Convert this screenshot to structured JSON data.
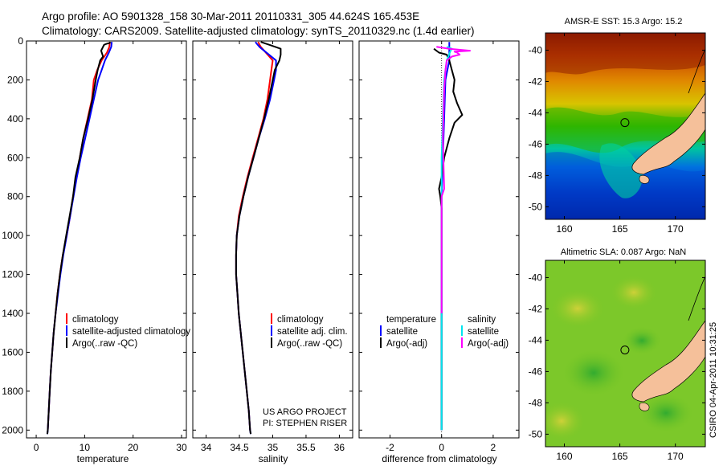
{
  "header": {
    "line1": "Argo profile: AO 5901328_158 30-Mar-2011 20110331_305 44.624S 165.453E",
    "line2": "Climatology: CARS2009. Satellite-adjusted climatology: synTS_20110329.nc (1.4d earlier)"
  },
  "chart_data": [
    {
      "type": "line",
      "xlabel": "temperature",
      "ylabel": "",
      "xlim": [
        -2,
        31
      ],
      "ylim": [
        2040,
        0
      ],
      "y_reversed": true,
      "xticks": [
        0,
        10,
        20,
        30
      ],
      "yticks": [
        0,
        200,
        400,
        600,
        800,
        1000,
        1200,
        1400,
        1600,
        1800,
        2000
      ],
      "legend_position": "lower-right",
      "colors": {
        "climatology": "#ff0000",
        "satellite": "#0000ff",
        "argo": "#000000"
      },
      "series": [
        {
          "name": "climatology",
          "color": "#ff0000",
          "points": [
            [
              15.2,
              5
            ],
            [
              15.1,
              30
            ],
            [
              14.6,
              60
            ],
            [
              13.5,
              100
            ],
            [
              12.6,
              150
            ],
            [
              11.9,
              200
            ],
            [
              11.5,
              300
            ],
            [
              10.6,
              400
            ],
            [
              9.7,
              500
            ],
            [
              9.0,
              600
            ],
            [
              8.3,
              700
            ],
            [
              7.6,
              800
            ],
            [
              7.0,
              900
            ],
            [
              6.3,
              1000
            ],
            [
              5.5,
              1100
            ],
            [
              4.9,
              1200
            ],
            [
              4.4,
              1300
            ],
            [
              4.0,
              1400
            ],
            [
              3.6,
              1500
            ],
            [
              3.3,
              1600
            ],
            [
              3.0,
              1700
            ],
            [
              2.8,
              1800
            ],
            [
              2.6,
              1900
            ],
            [
              2.4,
              2000
            ]
          ]
        },
        {
          "name": "satellite-adjusted climatology",
          "color": "#0000ff",
          "points": [
            [
              15.6,
              5
            ],
            [
              15.5,
              30
            ],
            [
              15.0,
              60
            ],
            [
              14.2,
              100
            ],
            [
              13.5,
              150
            ],
            [
              12.8,
              200
            ],
            [
              11.9,
              300
            ],
            [
              11.0,
              400
            ],
            [
              10.1,
              500
            ],
            [
              9.2,
              600
            ],
            [
              8.4,
              700
            ],
            [
              7.7,
              800
            ],
            [
              7.0,
              900
            ],
            [
              6.3,
              1000
            ],
            [
              5.6,
              1100
            ],
            [
              5.0,
              1200
            ],
            [
              4.5,
              1300
            ],
            [
              4.0,
              1400
            ],
            [
              3.6,
              1500
            ],
            [
              3.3,
              1600
            ],
            [
              3.0,
              1700
            ],
            [
              2.8,
              1800
            ],
            [
              2.6,
              1900
            ],
            [
              2.4,
              2000
            ],
            [
              2.3,
              2020
            ]
          ]
        },
        {
          "name": "Argo(..raw -QC)",
          "color": "#000000",
          "points": [
            [
              15.3,
              5
            ],
            [
              15.2,
              10
            ],
            [
              14.5,
              15
            ],
            [
              14.0,
              20
            ],
            [
              13.4,
              50
            ],
            [
              13.8,
              80
            ],
            [
              13.2,
              100
            ],
            [
              12.7,
              150
            ],
            [
              12.3,
              200
            ],
            [
              11.6,
              300
            ],
            [
              10.7,
              400
            ],
            [
              9.7,
              500
            ],
            [
              9.0,
              600
            ],
            [
              8.1,
              700
            ],
            [
              7.6,
              800
            ],
            [
              6.9,
              900
            ],
            [
              6.2,
              1000
            ],
            [
              5.5,
              1100
            ],
            [
              4.9,
              1200
            ],
            [
              4.4,
              1300
            ],
            [
              4.0,
              1400
            ],
            [
              3.6,
              1500
            ],
            [
              3.3,
              1600
            ],
            [
              3.0,
              1700
            ],
            [
              2.8,
              1800
            ],
            [
              2.6,
              1900
            ],
            [
              2.4,
              2000
            ],
            [
              2.3,
              2020
            ]
          ]
        }
      ],
      "legend": [
        "climatology",
        "satellite-adjusted climatology",
        "Argo(..raw -QC)"
      ]
    },
    {
      "type": "line",
      "xlabel": "salinity",
      "xlim": [
        33.8,
        36.2
      ],
      "ylim": [
        2040,
        0
      ],
      "y_reversed": true,
      "xticks": [
        34,
        34.5,
        35,
        35.5,
        36
      ],
      "xticklabels": [
        "34",
        "34.5",
        "35",
        "35.5",
        "36"
      ],
      "legend_position": "lower-right",
      "series": [
        {
          "name": "climatology",
          "color": "#ff0000",
          "points": [
            [
              34.78,
              5
            ],
            [
              34.82,
              30
            ],
            [
              35.0,
              100
            ],
            [
              34.98,
              150
            ],
            [
              34.96,
              200
            ],
            [
              34.92,
              300
            ],
            [
              34.86,
              400
            ],
            [
              34.78,
              500
            ],
            [
              34.7,
              600
            ],
            [
              34.62,
              700
            ],
            [
              34.55,
              800
            ],
            [
              34.49,
              900
            ],
            [
              34.46,
              1000
            ],
            [
              34.45,
              1100
            ],
            [
              34.45,
              1200
            ],
            [
              34.47,
              1300
            ],
            [
              34.49,
              1400
            ],
            [
              34.52,
              1500
            ],
            [
              34.55,
              1600
            ],
            [
              34.58,
              1700
            ],
            [
              34.61,
              1800
            ],
            [
              34.64,
              1900
            ],
            [
              34.66,
              2000
            ]
          ]
        },
        {
          "name": "satellite adj. clim.",
          "color": "#0000ff",
          "points": [
            [
              34.74,
              5
            ],
            [
              34.8,
              30
            ],
            [
              35.05,
              100
            ],
            [
              35.05,
              150
            ],
            [
              35.02,
              200
            ],
            [
              34.96,
              300
            ],
            [
              34.88,
              400
            ],
            [
              34.79,
              500
            ],
            [
              34.71,
              600
            ],
            [
              34.63,
              700
            ],
            [
              34.56,
              800
            ],
            [
              34.5,
              900
            ],
            [
              34.46,
              1000
            ],
            [
              34.45,
              1100
            ],
            [
              34.45,
              1200
            ],
            [
              34.47,
              1300
            ],
            [
              34.49,
              1400
            ],
            [
              34.52,
              1500
            ],
            [
              34.55,
              1600
            ],
            [
              34.58,
              1700
            ],
            [
              34.61,
              1800
            ],
            [
              34.64,
              1900
            ],
            [
              34.66,
              2000
            ],
            [
              34.67,
              2020
            ]
          ]
        },
        {
          "name": "Argo(..raw -QC)",
          "color": "#000000",
          "points": [
            [
              34.82,
              5
            ],
            [
              34.95,
              20
            ],
            [
              35.12,
              40
            ],
            [
              35.12,
              70
            ],
            [
              35.1,
              100
            ],
            [
              35.03,
              150
            ],
            [
              35.0,
              200
            ],
            [
              34.94,
              300
            ],
            [
              34.87,
              400
            ],
            [
              34.79,
              500
            ],
            [
              34.71,
              600
            ],
            [
              34.63,
              700
            ],
            [
              34.56,
              800
            ],
            [
              34.5,
              900
            ],
            [
              34.46,
              1000
            ],
            [
              34.45,
              1100
            ],
            [
              34.45,
              1200
            ],
            [
              34.47,
              1300
            ],
            [
              34.49,
              1400
            ],
            [
              34.52,
              1500
            ],
            [
              34.55,
              1600
            ],
            [
              34.58,
              1700
            ],
            [
              34.61,
              1800
            ],
            [
              34.64,
              1900
            ],
            [
              34.66,
              2000
            ],
            [
              34.67,
              2020
            ]
          ]
        }
      ],
      "legend": [
        "climatology",
        "satellite adj. clim.",
        "Argo(..raw -QC)"
      ],
      "annotation": [
        "US ARGO PROJECT",
        "PI: STEPHEN RISER"
      ]
    },
    {
      "type": "line",
      "xlabel": "difference from climatology",
      "xlim": [
        -3.2,
        3.0
      ],
      "ylim": [
        2040,
        0
      ],
      "y_reversed": true,
      "xticks": [
        -2,
        0,
        2
      ],
      "legend_position": "lower",
      "series": [
        {
          "name": "temperature satellite",
          "color": "#0000ff",
          "points": [
            [
              0.3,
              5
            ],
            [
              0.3,
              100
            ],
            [
              0.15,
              200
            ],
            [
              0.1,
              400
            ],
            [
              0.05,
              600
            ],
            [
              0.0,
              800
            ],
            [
              0.0,
              1000
            ],
            [
              0.0,
              2000
            ]
          ]
        },
        {
          "name": "temperature Argo(-adj)",
          "color": "#000000",
          "points": [
            [
              -0.3,
              40
            ],
            [
              -0.1,
              60
            ],
            [
              0.2,
              70
            ],
            [
              0.3,
              100
            ],
            [
              0.4,
              150
            ],
            [
              0.5,
              200
            ],
            [
              0.45,
              260
            ],
            [
              0.6,
              320
            ],
            [
              0.8,
              380
            ],
            [
              0.5,
              420
            ],
            [
              0.3,
              500
            ],
            [
              0.1,
              600
            ],
            [
              0.0,
              700
            ],
            [
              -0.1,
              760
            ],
            [
              -0.05,
              800
            ],
            [
              0.0,
              860
            ],
            [
              0.0,
              1000
            ],
            [
              0.0,
              2000
            ]
          ]
        },
        {
          "name": "salinity satellite",
          "color": "#00e5ee",
          "points": [
            [
              0.2,
              30
            ],
            [
              0.4,
              40
            ],
            [
              0.35,
              50
            ],
            [
              0.2,
              100
            ],
            [
              0.1,
              200
            ],
            [
              0.05,
              400
            ],
            [
              0.0,
              600
            ],
            [
              0.0,
              800
            ],
            [
              0.0,
              1200
            ],
            [
              0.0,
              2000
            ]
          ]
        },
        {
          "name": "salinity Argo(-adj)",
          "color": "#ff00ff",
          "points": [
            [
              -0.2,
              30
            ],
            [
              0.3,
              40
            ],
            [
              1.1,
              50
            ],
            [
              0.5,
              55
            ],
            [
              0.6,
              60
            ],
            [
              0.7,
              70
            ],
            [
              0.4,
              80
            ],
            [
              0.2,
              100
            ],
            [
              0.15,
              150
            ],
            [
              0.1,
              250
            ],
            [
              0.05,
              500
            ],
            [
              0.1,
              760
            ],
            [
              0.0,
              800
            ],
            [
              0.0,
              1000
            ],
            [
              0.0,
              1400
            ]
          ]
        }
      ],
      "legend_headers": [
        "temperature",
        "salinity"
      ],
      "legend": [
        "satellite",
        "Argo(-adj)",
        "satellite",
        "Argo(-adj)"
      ]
    },
    {
      "type": "heatmap",
      "title": "AMSR-E SST: 15.3 Argo: 15.2",
      "xlim": [
        158.3,
        172.7
      ],
      "ylim": [
        -50.8,
        -38.9
      ],
      "xticks": [
        160,
        165,
        170
      ],
      "yticks": [
        -40,
        -42,
        -44,
        -46,
        -48,
        -50
      ],
      "marker": {
        "lon": 165.453,
        "lat": -44.624
      }
    },
    {
      "type": "heatmap",
      "title": "Altimetric SLA: 0.087 Argo: NaN",
      "xlim": [
        158.3,
        172.7
      ],
      "ylim": [
        -50.8,
        -38.9
      ],
      "xticks": [
        160,
        165,
        170
      ],
      "yticks": [
        -40,
        -42,
        -44,
        -46,
        -48,
        -50
      ],
      "marker": {
        "lon": 165.453,
        "lat": -44.624
      }
    }
  ],
  "credit": "CSIRO 04-Apr-2011 10:31:25"
}
